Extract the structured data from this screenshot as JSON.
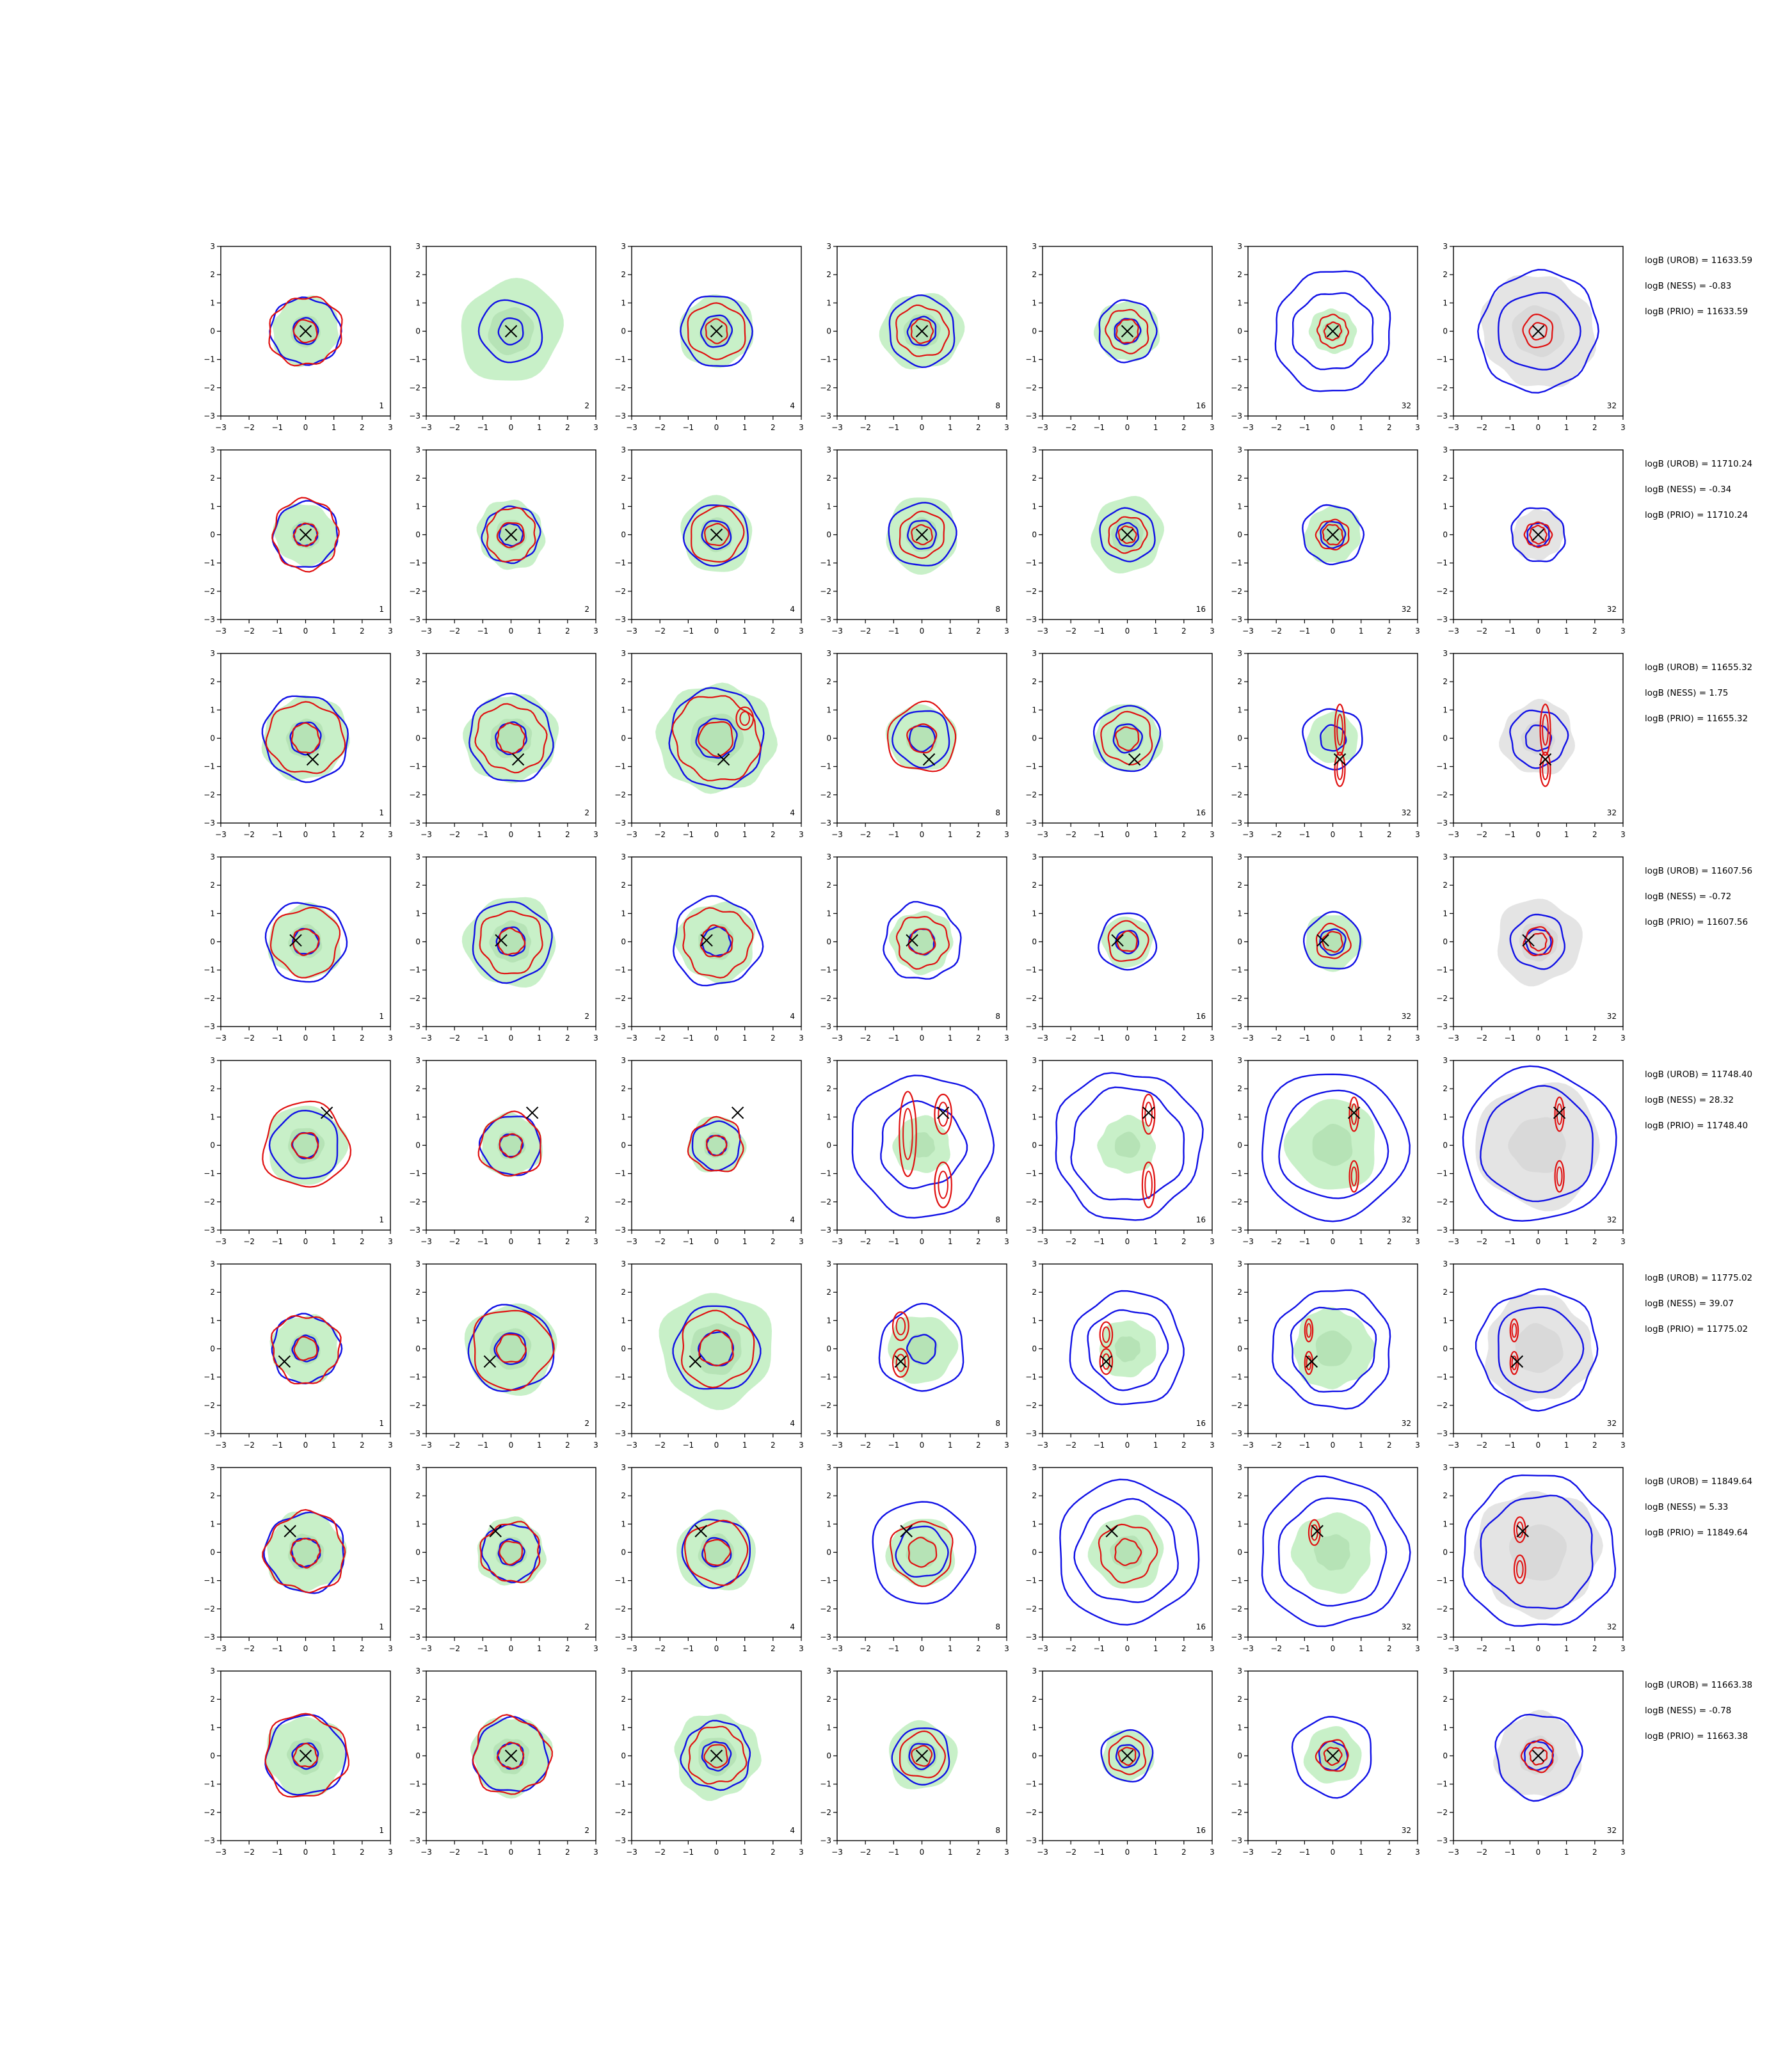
{
  "chart_data": {
    "type": "contour-grid",
    "grid": {
      "rows": 8,
      "cols": 7
    },
    "xlim": [
      -3,
      3
    ],
    "ylim": [
      -3,
      3
    ],
    "xticks": [
      -3,
      -2,
      -1,
      0,
      1,
      2,
      3
    ],
    "yticks": [
      -3,
      -2,
      -1,
      0,
      1,
      2,
      3
    ],
    "column_labels": [
      "1",
      "2",
      "4",
      "8",
      "16",
      "32",
      "32"
    ],
    "colors": {
      "blue_contour": "#1010e6",
      "red_contour": "#e01010",
      "green_fill": "#c8f0c8",
      "green_core": "#a8d8a8",
      "grey_fill": "#e4e4e4",
      "grey_core": "#d0d0d0",
      "marker": "#000000"
    },
    "rows": [
      {
        "marker": [
          0,
          0
        ],
        "stats": [
          "logB (UROB) = 11633.59",
          "logB (NESS) = -0.83",
          "logB (PRIO) = 11633.59"
        ],
        "panels": [
          {
            "fill": "green",
            "fill_r": 1.2,
            "blue": [
              1.2,
              0.45
            ],
            "red": [
              1.25,
              0.4
            ],
            "red_modes": []
          },
          {
            "fill": "green",
            "fill_r": 1.8,
            "blue": [
              1.1,
              0.45
            ],
            "red": [],
            "red_modes": []
          },
          {
            "fill": "green",
            "fill_r": 1.3,
            "blue": [
              1.25,
              0.55
            ],
            "red": [
              1.0,
              0.4
            ],
            "red_modes": []
          },
          {
            "fill": "green",
            "fill_r": 1.4,
            "blue": [
              1.2,
              0.5
            ],
            "red": [
              0.9,
              0.4
            ],
            "red_modes": []
          },
          {
            "fill": "green",
            "fill_r": 1.1,
            "blue": [
              1.05,
              0.45
            ],
            "red": [
              0.75,
              0.4
            ],
            "red_modes": []
          },
          {
            "fill": "green",
            "fill_r": 0.8,
            "blue": [
              2.1,
              1.4
            ],
            "red": [
              0.55,
              0.3
            ],
            "red_modes": []
          },
          {
            "fill": "grey",
            "fill_r": 2.0,
            "blue": [
              2.1,
              1.4
            ],
            "red": [
              0.55,
              0.3
            ],
            "red_modes": []
          }
        ]
      },
      {
        "marker": [
          0,
          0
        ],
        "stats": [
          "logB (UROB) = 11710.24",
          "logB (NESS) = -0.34",
          "logB (PRIO) = 11710.24"
        ],
        "panels": [
          {
            "fill": "green",
            "fill_r": 1.1,
            "blue": [
              1.15,
              0.4
            ],
            "red": [
              1.2,
              0.4
            ],
            "red_modes": []
          },
          {
            "fill": "green",
            "fill_r": 1.2,
            "blue": [
              1.0,
              0.4
            ],
            "red": [
              0.9,
              0.45
            ],
            "red_modes": []
          },
          {
            "fill": "green",
            "fill_r": 1.3,
            "blue": [
              1.1,
              0.5
            ],
            "red": [
              0.95,
              0.4
            ],
            "red_modes": []
          },
          {
            "fill": "green",
            "fill_r": 1.3,
            "blue": [
              1.15,
              0.5
            ],
            "red": [
              0.8,
              0.35
            ],
            "red_modes": []
          },
          {
            "fill": "green",
            "fill_r": 1.3,
            "blue": [
              0.95,
              0.4
            ],
            "red": [
              0.65,
              0.3
            ],
            "red_modes": []
          },
          {
            "fill": "green",
            "fill_r": 1.0,
            "blue": [
              1.05,
              0.45
            ],
            "red": [
              0.55,
              0.35
            ],
            "red_modes": []
          },
          {
            "fill": "grey",
            "fill_r": 0.9,
            "blue": [
              0.95,
              0.4
            ],
            "red": [
              0.45,
              0.3
            ],
            "red_modes": []
          }
        ]
      },
      {
        "marker": [
          0.25,
          -0.75
        ],
        "stats": [
          "logB (UROB) = 11655.32",
          "logB (NESS) = 1.75",
          "logB (PRIO) = 11655.32"
        ],
        "panels": [
          {
            "fill": "green",
            "fill_r": 1.5,
            "blue": [
              1.5,
              0.55
            ],
            "red": [
              1.3,
              0.5
            ],
            "red_modes": []
          },
          {
            "fill": "green",
            "fill_r": 1.6,
            "blue": [
              1.5,
              0.55
            ],
            "red": [
              1.2,
              0.5
            ],
            "red_modes": []
          },
          {
            "fill": "green",
            "fill_r": 2.0,
            "blue": [
              1.7,
              0.7
            ],
            "red": [
              1.5,
              0.6
            ],
            "red_modes": [
              [
                1.0,
                0.7,
                0.3,
                0.4
              ]
            ]
          },
          {
            "fill": "green",
            "fill_r": 1.2,
            "blue": [
              1.0,
              0.45
            ],
            "red": [
              1.2,
              0.5
            ],
            "red_modes": []
          },
          {
            "fill": "green",
            "fill_r": 1.2,
            "blue": [
              1.15,
              0.5
            ],
            "red": [
              0.9,
              0.4
            ],
            "red_modes": []
          },
          {
            "fill": "green",
            "fill_r": 0.9,
            "blue": [
              1.05,
              0.45
            ],
            "red": [],
            "red_modes": [
              [
                0.25,
                0.3,
                0.18,
                0.9
              ],
              [
                0.25,
                -1.1,
                0.18,
                0.6
              ]
            ]
          },
          {
            "fill": "grey",
            "fill_r": 1.3,
            "blue": [
              1.0,
              0.45
            ],
            "red": [],
            "red_modes": [
              [
                0.25,
                0.3,
                0.18,
                0.9
              ],
              [
                0.25,
                -1.1,
                0.18,
                0.6
              ]
            ]
          }
        ]
      },
      {
        "marker": [
          -0.35,
          0.05
        ],
        "stats": [
          "logB (UROB) = 11607.56",
          "logB (NESS) = -0.72",
          "logB (PRIO) = 11607.56"
        ],
        "panels": [
          {
            "fill": "green",
            "fill_r": 1.3,
            "blue": [
              1.4,
              0.45
            ],
            "red": [
              1.2,
              0.45
            ],
            "red_modes": []
          },
          {
            "fill": "green",
            "fill_r": 1.6,
            "blue": [
              1.4,
              0.5
            ],
            "red": [
              1.1,
              0.45
            ],
            "red_modes": []
          },
          {
            "fill": "green",
            "fill_r": 1.4,
            "blue": [
              1.55,
              0.5
            ],
            "red": [
              1.2,
              0.55
            ],
            "red_modes": []
          },
          {
            "fill": "green",
            "fill_r": 1.1,
            "blue": [
              1.35,
              0.45
            ],
            "red": [
              0.9,
              0.45
            ],
            "red_modes": []
          },
          {
            "fill": "green",
            "fill_r": 0.9,
            "blue": [
              1.0,
              0.4
            ],
            "red": [
              0.7,
              0.35
            ],
            "red_modes": []
          },
          {
            "fill": "green",
            "fill_r": 1.0,
            "blue": [
              1.0,
              0.45
            ],
            "red": [
              0.6,
              0.35
            ],
            "red_modes": []
          },
          {
            "fill": "grey",
            "fill_r": 1.5,
            "blue": [
              0.95,
              0.45
            ],
            "red": [
              0.5,
              0.3
            ],
            "red_modes": []
          }
        ]
      },
      {
        "marker": [
          0.75,
          1.15
        ],
        "stats": [
          "logB (UROB) = 11748.40",
          "logB (NESS) = 28.32",
          "logB (PRIO) = 11748.40"
        ],
        "panels": [
          {
            "fill": "green",
            "fill_r": 1.4,
            "blue": [
              1.2,
              0.45
            ],
            "red": [
              1.5,
              0.45
            ],
            "red_modes": []
          },
          {
            "fill": "green",
            "fill_r": 1.1,
            "blue": [
              1.05,
              0.4
            ],
            "red": [
              1.1,
              0.4
            ],
            "red_modes": []
          },
          {
            "fill": "green",
            "fill_r": 1.0,
            "blue": [
              0.85,
              0.35
            ],
            "red": [
              0.95,
              0.35
            ],
            "red_modes": []
          },
          {
            "fill": "green",
            "fill_r": 1.0,
            "blue": [
              2.5,
              1.5
            ],
            "red": [],
            "red_modes": [
              [
                0.75,
                1.1,
                0.3,
                0.7
              ],
              [
                -0.5,
                0.4,
                0.3,
                1.5
              ],
              [
                0.75,
                -1.4,
                0.3,
                0.8
              ]
            ]
          },
          {
            "fill": "green",
            "fill_r": 1.0,
            "blue": [
              2.6,
              2.0
            ],
            "red": [],
            "red_modes": [
              [
                0.75,
                1.1,
                0.22,
                0.7
              ],
              [
                0.75,
                -1.4,
                0.22,
                0.8
              ]
            ]
          },
          {
            "fill": "green",
            "fill_r": 1.6,
            "blue": [
              2.6,
              1.9
            ],
            "red": [],
            "red_modes": [
              [
                0.75,
                1.1,
                0.16,
                0.6
              ],
              [
                0.75,
                -1.1,
                0.16,
                0.55
              ]
            ]
          },
          {
            "fill": "grey",
            "fill_r": 2.2,
            "blue": [
              2.7,
              2.0
            ],
            "red": [],
            "red_modes": [
              [
                0.75,
                1.1,
                0.16,
                0.6
              ],
              [
                0.75,
                -1.1,
                0.16,
                0.55
              ]
            ]
          }
        ]
      },
      {
        "marker": [
          -0.75,
          -0.45
        ],
        "stats": [
          "logB (UROB) = 11775.02",
          "logB (NESS) = 39.07",
          "logB (PRIO) = 11775.02"
        ],
        "panels": [
          {
            "fill": "green",
            "fill_r": 1.2,
            "blue": [
              1.2,
              0.45
            ],
            "red": [
              1.2,
              0.4
            ],
            "red_modes": []
          },
          {
            "fill": "green",
            "fill_r": 1.6,
            "blue": [
              1.5,
              0.55
            ],
            "red": [
              1.4,
              0.5
            ],
            "red_modes": []
          },
          {
            "fill": "green",
            "fill_r": 2.0,
            "blue": [
              1.5,
              0.6
            ],
            "red": [
              1.3,
              0.6
            ],
            "red_modes": []
          },
          {
            "fill": "green",
            "fill_r": 1.2,
            "blue": [
              1.5,
              0.5
            ],
            "red": [],
            "red_modes": [
              [
                -0.75,
                0.8,
                0.28,
                0.5
              ],
              [
                -0.75,
                -0.5,
                0.28,
                0.5
              ]
            ]
          },
          {
            "fill": "green",
            "fill_r": 1.0,
            "blue": [
              2.0,
              1.4
            ],
            "red": [],
            "red_modes": [
              [
                -0.75,
                0.5,
                0.22,
                0.45
              ],
              [
                -0.75,
                -0.45,
                0.22,
                0.45
              ]
            ]
          },
          {
            "fill": "green",
            "fill_r": 1.4,
            "blue": [
              2.1,
              1.5
            ],
            "red": [],
            "red_modes": [
              [
                -0.85,
                0.65,
                0.14,
                0.4
              ],
              [
                -0.85,
                -0.5,
                0.14,
                0.4
              ]
            ]
          },
          {
            "fill": "grey",
            "fill_r": 1.9,
            "blue": [
              2.1,
              1.5
            ],
            "red": [],
            "red_modes": [
              [
                -0.85,
                0.65,
                0.14,
                0.4
              ],
              [
                -0.85,
                -0.5,
                0.14,
                0.4
              ]
            ]
          }
        ]
      },
      {
        "marker": [
          -0.55,
          0.75
        ],
        "stats": [
          "logB (UROB) = 11849.64",
          "logB (NESS) = 5.33",
          "logB (PRIO) = 11849.64"
        ],
        "panels": [
          {
            "fill": "green",
            "fill_r": 1.4,
            "blue": [
              1.4,
              0.5
            ],
            "red": [
              1.4,
              0.5
            ],
            "red_modes": []
          },
          {
            "fill": "green",
            "fill_r": 1.2,
            "blue": [
              1.0,
              0.45
            ],
            "red": [
              1.05,
              0.4
            ],
            "red_modes": []
          },
          {
            "fill": "green",
            "fill_r": 1.4,
            "blue": [
              1.2,
              0.5
            ],
            "red": [
              1.1,
              0.45
            ],
            "red_modes": []
          },
          {
            "fill": "green",
            "fill_r": 1.2,
            "blue": [
              1.8,
              0.9
            ],
            "red": [
              1.1,
              0.5
            ],
            "red_modes": []
          },
          {
            "fill": "green",
            "fill_r": 1.3,
            "blue": [
              2.5,
              1.8
            ],
            "red": [
              1.0,
              0.45
            ],
            "red_modes": []
          },
          {
            "fill": "green",
            "fill_r": 1.4,
            "blue": [
              2.6,
              1.9
            ],
            "red": [],
            "red_modes": [
              [
                -0.65,
                0.7,
                0.2,
                0.45
              ]
            ]
          },
          {
            "fill": "grey",
            "fill_r": 2.2,
            "blue": [
              2.7,
              2.0
            ],
            "red": [],
            "red_modes": [
              [
                -0.65,
                0.8,
                0.2,
                0.45
              ],
              [
                -0.65,
                -0.6,
                0.2,
                0.5
              ]
            ]
          }
        ]
      },
      {
        "marker": [
          0,
          0
        ],
        "stats": [
          "logB (UROB) = 11663.38",
          "logB (NESS) = -0.78",
          "logB (PRIO) = 11663.38"
        ],
        "panels": [
          {
            "fill": "green",
            "fill_r": 1.4,
            "blue": [
              1.4,
              0.45
            ],
            "red": [
              1.45,
              0.4
            ],
            "red_modes": []
          },
          {
            "fill": "green",
            "fill_r": 1.4,
            "blue": [
              1.3,
              0.45
            ],
            "red": [
              1.35,
              0.45
            ],
            "red_modes": []
          },
          {
            "fill": "green",
            "fill_r": 1.5,
            "blue": [
              1.2,
              0.5
            ],
            "red": [
              1.0,
              0.4
            ],
            "red_modes": []
          },
          {
            "fill": "green",
            "fill_r": 1.2,
            "blue": [
              1.0,
              0.45
            ],
            "red": [
              0.8,
              0.35
            ],
            "red_modes": []
          },
          {
            "fill": "green",
            "fill_r": 0.9,
            "blue": [
              0.9,
              0.4
            ],
            "red": [
              0.65,
              0.3
            ],
            "red_modes": []
          },
          {
            "fill": "green",
            "fill_r": 1.0,
            "blue": [
              1.4,
              0.5
            ],
            "red": [
              0.55,
              0.3
            ],
            "red_modes": []
          },
          {
            "fill": "grey",
            "fill_r": 1.5,
            "blue": [
              1.5,
              0.5
            ],
            "red": [
              0.55,
              0.3
            ],
            "red_modes": []
          }
        ]
      }
    ]
  }
}
